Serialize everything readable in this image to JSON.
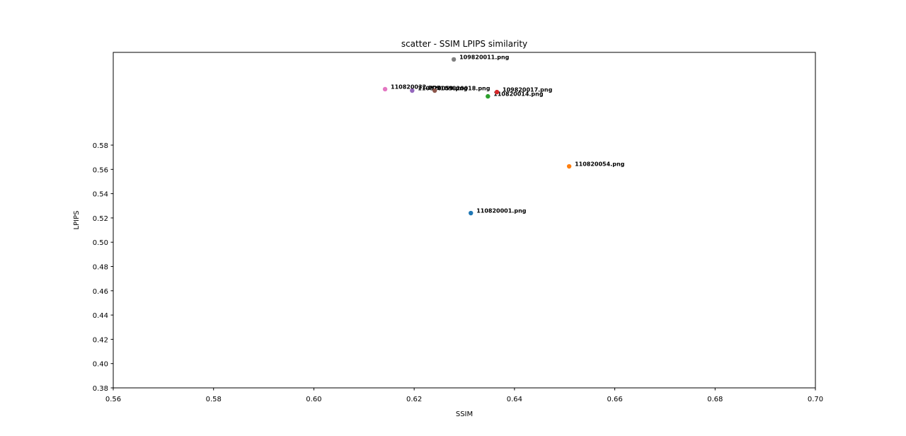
{
  "chart_data": {
    "type": "scatter",
    "title": "scatter - SSIM LPIPS similarity",
    "x_label": "SSIM",
    "y_label": "LPIPS",
    "xlim": [
      0.56,
      0.7
    ],
    "ylim": [
      0.38,
      0.6564
    ],
    "xticks": [
      0.56,
      0.58,
      {
        "value": 0.6,
        "label": "0.60"
      },
      0.62,
      0.64,
      0.66,
      0.68,
      {
        "value": 0.7,
        "label": "0.70"
      }
    ],
    "yticks": [
      0.38,
      {
        "value": 0.4,
        "label": "0.40"
      },
      0.42,
      0.44,
      0.46,
      0.48,
      {
        "value": 0.5,
        "label": "0.50"
      },
      0.52,
      0.54,
      0.56,
      0.58
    ],
    "series": [
      {
        "name": "110820001.png",
        "color": "#1f77b4",
        "x": [
          0.6313
        ],
        "y": [
          0.524
        ]
      },
      {
        "name": "110820054.png",
        "color": "#ff7f0e",
        "x": [
          0.6509
        ],
        "y": [
          0.5625
        ]
      },
      {
        "name": "110820014.png",
        "color": "#2ca02c",
        "x": [
          0.6347
        ],
        "y": [
          0.6202
        ]
      },
      {
        "name": "109820017.png",
        "color": "#d62728",
        "x": [
          0.6365
        ],
        "y": [
          0.6237
        ]
      },
      {
        "name": "110820059.png",
        "color": "#9467bd",
        "x": [
          0.6196
        ],
        "y": [
          0.6249
        ]
      },
      {
        "name": "109820018.png",
        "color": "#8c564b",
        "x": [
          0.6241
        ],
        "y": [
          0.6249
        ]
      },
      {
        "name": "110820032.png",
        "color": "#e377c2",
        "x": [
          0.6142
        ],
        "y": [
          0.6261
        ]
      },
      {
        "name": "109820011.png",
        "color": "#7f7f7f",
        "x": [
          0.6279
        ],
        "y": [
          0.6506
        ]
      }
    ]
  }
}
